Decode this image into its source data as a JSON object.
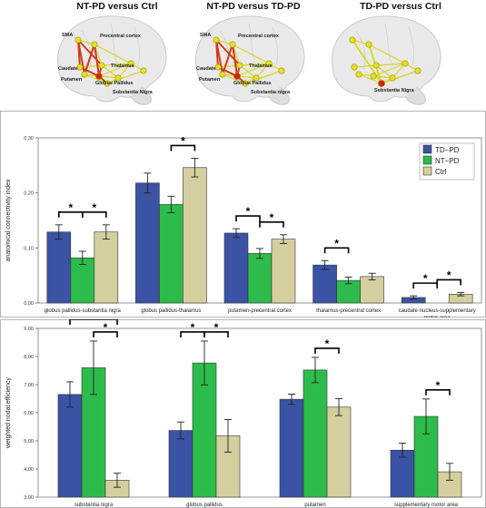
{
  "brains": {
    "panels": [
      {
        "title": "NT-PD versus Ctrl",
        "labels": [
          "SMA",
          "Precentral cortex",
          "Thalamus",
          "Caudate",
          "Putamen",
          "Globus Pallidus",
          "Substantia Nigra"
        ]
      },
      {
        "title": "NT-PD versus TD-PD",
        "labels": [
          "SMA",
          "Precentral cortex",
          "Thalamus",
          "Caudate",
          "Putamen",
          "Globus Pallidus",
          "Substantia nigra"
        ]
      },
      {
        "title": "TD-PD versus Ctrl",
        "labels": [
          "Substantia Nigra"
        ]
      }
    ],
    "colors": {
      "edge_strong": "#d03a18",
      "edge_weak": "#d8d820",
      "node_yellow": "#e8e020",
      "node_red": "#d82010"
    }
  },
  "chart_data": [
    {
      "type": "bar",
      "ylabel": "anatomical connectivity index",
      "ylim": [
        0,
        0.3
      ],
      "yticks": [
        "0,00",
        "0,10",
        "0,20",
        "0,30"
      ],
      "legend": {
        "position": "top-right",
        "labels": [
          "TD−PD",
          "NT−PD",
          "Ctrl"
        ]
      },
      "categories": [
        "globus pallidus-substantia nigra",
        "globus pallidus-thalamus",
        "putamen-precentral cortex",
        "thalamus-precentral cortex",
        "caudate nucleus-supplementary motor area"
      ],
      "series": [
        {
          "name": "TD−PD",
          "color": "#3a53a4",
          "values": [
            0.129,
            0.218,
            0.127,
            0.069,
            0.01
          ],
          "errors": [
            0.013,
            0.018,
            0.008,
            0.008,
            0.003
          ]
        },
        {
          "name": "NT−PD",
          "color": "#2dbc4b",
          "values": [
            0.082,
            0.179,
            0.09,
            0.041,
            0.0
          ],
          "errors": [
            0.012,
            0.015,
            0.009,
            0.006,
            0.0
          ]
        },
        {
          "name": "Ctrl",
          "color": "#d5cf9f",
          "values": [
            0.129,
            0.246,
            0.116,
            0.048,
            0.016
          ],
          "errors": [
            0.013,
            0.017,
            0.008,
            0.006,
            0.003
          ]
        }
      ],
      "significance": [
        {
          "category": 0,
          "pair": [
            0,
            1
          ],
          "level": 1
        },
        {
          "category": 0,
          "pair": [
            1,
            2
          ],
          "level": 1
        },
        {
          "category": 1,
          "pair": [
            1,
            2
          ],
          "level": 1
        },
        {
          "category": 2,
          "pair": [
            0,
            1
          ],
          "level": 1
        },
        {
          "category": 2,
          "pair": [
            1,
            2
          ],
          "level": 1
        },
        {
          "category": 3,
          "pair": [
            0,
            1
          ],
          "level": 1
        },
        {
          "category": 4,
          "pair": [
            0,
            1
          ],
          "level": 1
        },
        {
          "category": 4,
          "pair": [
            1,
            2
          ],
          "level": 1
        }
      ],
      "star": "*"
    },
    {
      "type": "bar",
      "ylabel": "weighted nodal efficiency",
      "ylim": [
        3.0,
        9.0
      ],
      "yticks": [
        "3,00",
        "4,00",
        "5,00",
        "6,00",
        "7,00",
        "8,00",
        "9,00"
      ],
      "categories": [
        "substantia nigra",
        "globus pallidus",
        "putamen",
        "supplementary motor area"
      ],
      "series": [
        {
          "name": "TD−PD",
          "color": "#3a53a4",
          "values": [
            6.65,
            5.37,
            6.48,
            4.67
          ],
          "errors": [
            0.45,
            0.3,
            0.18,
            0.25
          ]
        },
        {
          "name": "NT−PD",
          "color": "#2dbc4b",
          "values": [
            7.6,
            7.77,
            7.52,
            5.87
          ],
          "errors": [
            0.95,
            0.78,
            0.45,
            0.62
          ]
        },
        {
          "name": "Ctrl",
          "color": "#d5cf9f",
          "values": [
            3.6,
            5.18,
            6.2,
            3.9
          ],
          "errors": [
            0.25,
            0.58,
            0.3,
            0.3
          ]
        }
      ],
      "significance": [
        {
          "category": 0,
          "pair": [
            0,
            2
          ],
          "level": 2
        },
        {
          "category": 0,
          "pair": [
            1,
            2
          ],
          "level": 1
        },
        {
          "category": 1,
          "pair": [
            0,
            1
          ],
          "level": 1
        },
        {
          "category": 1,
          "pair": [
            1,
            2
          ],
          "level": 1
        },
        {
          "category": 2,
          "pair": [
            1,
            2
          ],
          "level": 1
        },
        {
          "category": 3,
          "pair": [
            1,
            2
          ],
          "level": 1
        }
      ],
      "star": "*"
    }
  ]
}
